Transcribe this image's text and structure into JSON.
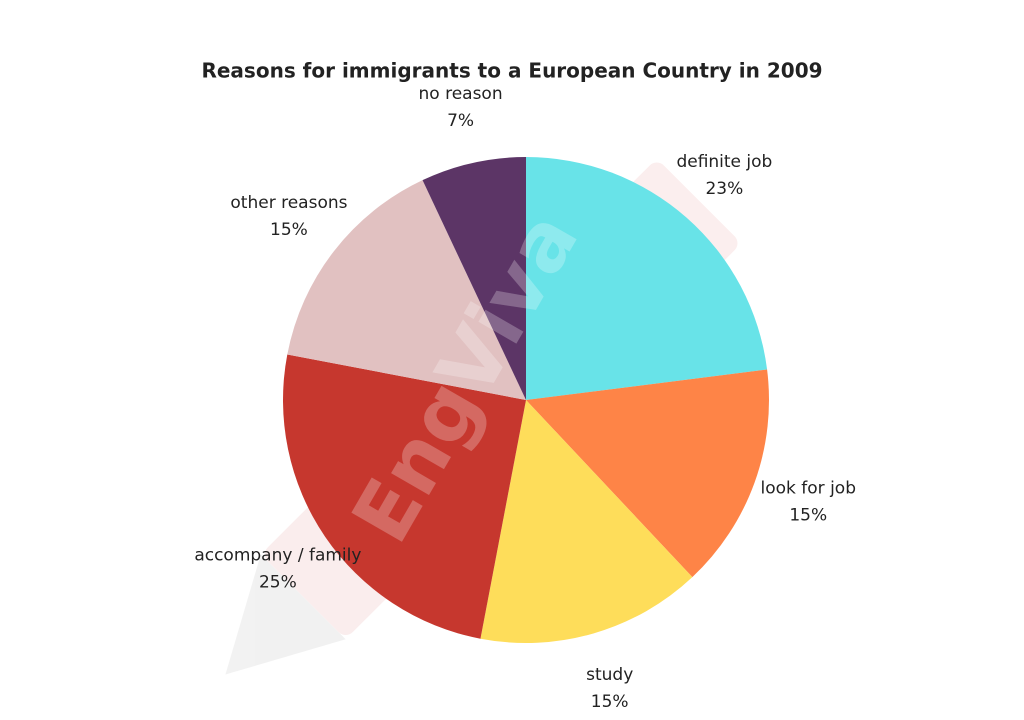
{
  "chart_data": {
    "type": "pie",
    "title": "Reasons for immigrants to a European Country in 2009",
    "watermark": "EngViva",
    "categories": [
      "definite job",
      "look for job",
      "study",
      "accompany / family",
      "other reasons",
      "no reason"
    ],
    "values": [
      23,
      15,
      15,
      25,
      15,
      7
    ],
    "value_labels": [
      "23%",
      "15%",
      "15%",
      "25%",
      "15%",
      "7%"
    ],
    "colors": [
      "#68e3e8",
      "#fe8447",
      "#fedd5a",
      "#c6372e",
      "#e1c1c1",
      "#5c3566"
    ]
  }
}
